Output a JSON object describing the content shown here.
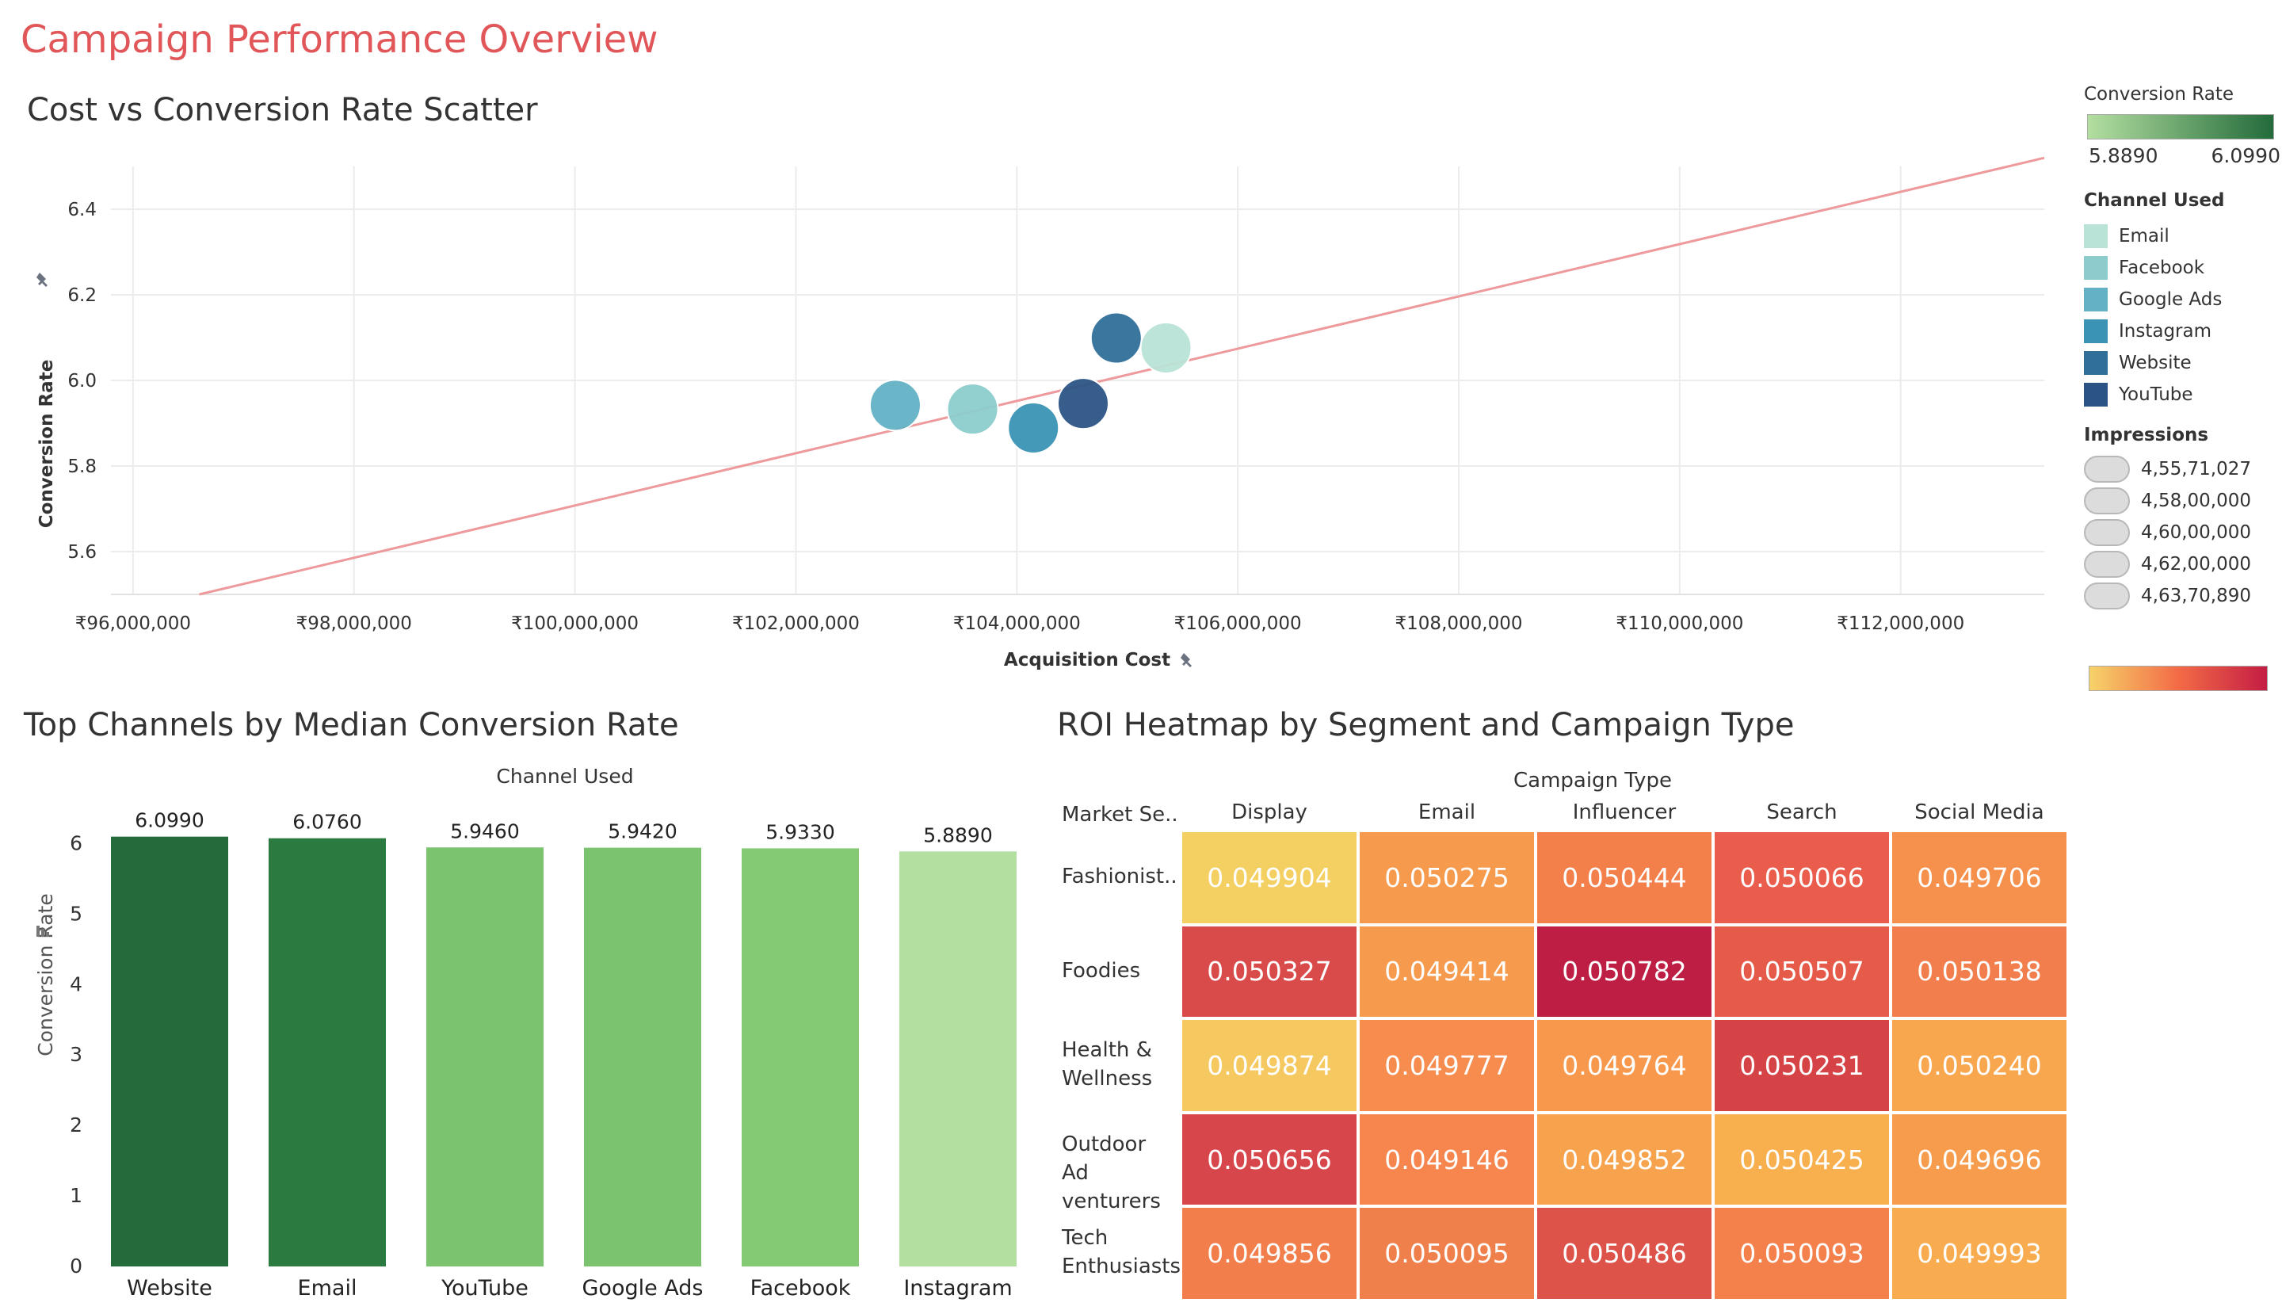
{
  "dashboard": {
    "title": "Campaign Performance Overview"
  },
  "scatter": {
    "title": "Cost vs Conversion Rate Scatter",
    "xlabel": "Acquisition Cost",
    "ylabel": "Conversion Rate",
    "x_ticks": [
      "₹96,000,000",
      "₹98,000,000",
      "₹100,000,000",
      "₹102,000,000",
      "₹104,000,000",
      "₹106,000,000",
      "₹108,000,000",
      "₹110,000,000",
      "₹112,000,000"
    ],
    "y_ticks": [
      "5.6",
      "5.8",
      "6.0",
      "6.2",
      "6.4"
    ]
  },
  "bar": {
    "title": "Top Channels by Median Conversion Rate",
    "header": "Channel Used",
    "ylabel": "Conversion Rate",
    "y_ticks": [
      "0",
      "1",
      "2",
      "3",
      "4",
      "5",
      "6"
    ]
  },
  "heatmap": {
    "title": "ROI Heatmap by Segment and Campaign Type",
    "col_header": "Campaign Type",
    "row_header": "Market Se..",
    "columns": [
      "Display",
      "Email",
      "Influencer",
      "Search",
      "Social Media"
    ],
    "rows": [
      "Fashionist..",
      "Foodies",
      "Health & Wellness",
      "Outdoor Ad venturers",
      "Tech Enthusiasts"
    ],
    "values": [
      [
        "0.049904",
        "0.050275",
        "0.050444",
        "0.050066",
        "0.049706"
      ],
      [
        "0.050327",
        "0.049414",
        "0.050782",
        "0.050507",
        "0.050138"
      ],
      [
        "0.049874",
        "0.049777",
        "0.049764",
        "0.050231",
        "0.050240"
      ],
      [
        "0.050656",
        "0.049146",
        "0.049852",
        "0.050425",
        "0.049696"
      ],
      [
        "0.049856",
        "0.050095",
        "0.050486",
        "0.050093",
        "0.049993"
      ]
    ]
  },
  "legend": {
    "conversion_rate": {
      "title": "Conversion Rate",
      "min": "5.8890",
      "max": "6.0990",
      "color_low": "#b3dfa0",
      "color_high": "#236b3b"
    },
    "channel": {
      "title": "Channel Used",
      "items": [
        {
          "label": "Email",
          "color": "#b9e3d6"
        },
        {
          "label": "Facebook",
          "color": "#8ccccc"
        },
        {
          "label": "Google Ads",
          "color": "#62b1c4"
        },
        {
          "label": "Instagram",
          "color": "#3b93b4"
        },
        {
          "label": "Website",
          "color": "#2f6f98"
        },
        {
          "label": "YouTube",
          "color": "#2b5485"
        }
      ]
    },
    "impressions": {
      "title": "Impressions",
      "items": [
        "4,55,71,027",
        "4,58,00,000",
        "4,60,00,000",
        "4,62,00,000",
        "4,63,70,890"
      ]
    },
    "roi_gradient": {
      "color_low": "#f6d36a",
      "color_mid": "#f36b46",
      "color_high": "#c41d44"
    }
  },
  "chart_data": [
    {
      "type": "scatter",
      "title": "Cost vs Conversion Rate Scatter",
      "xlabel": "Acquisition Cost",
      "ylabel": "Conversion Rate",
      "xlim": [
        95800000,
        113300000
      ],
      "ylim": [
        5.5,
        6.5
      ],
      "points": [
        {
          "channel": "Google Ads",
          "x": 102900000,
          "y": 5.942,
          "color": "#62b1c4"
        },
        {
          "channel": "Facebook",
          "x": 103600000,
          "y": 5.933,
          "color": "#8ccccc"
        },
        {
          "channel": "Instagram",
          "x": 104150000,
          "y": 5.889,
          "color": "#3b93b4"
        },
        {
          "channel": "YouTube",
          "x": 104600000,
          "y": 5.946,
          "color": "#2b5485"
        },
        {
          "channel": "Website",
          "x": 104900000,
          "y": 6.099,
          "color": "#2f6f98"
        },
        {
          "channel": "Email",
          "x": 105350000,
          "y": 6.076,
          "color": "#b9e3d6"
        }
      ],
      "trend_line": {
        "x": [
          96600000,
          113300000
        ],
        "y": [
          5.5,
          6.52
        ],
        "color": "#ee9a9c"
      },
      "grid": true
    },
    {
      "type": "bar",
      "title": "Top Channels by Median Conversion Rate",
      "xlabel": "Channel Used",
      "ylabel": "Conversion Rate",
      "categories": [
        "Website",
        "Email",
        "YouTube",
        "Google Ads",
        "Facebook",
        "Instagram"
      ],
      "values": [
        6.099,
        6.076,
        5.946,
        5.942,
        5.933,
        5.889
      ],
      "labels": [
        "6.0990",
        "6.0760",
        "5.9460",
        "5.9420",
        "5.9330",
        "5.8890"
      ],
      "colors": [
        "#236b3b",
        "#2b7b40",
        "#7cc36f",
        "#7cc36f",
        "#84c974",
        "#b3dfa0"
      ],
      "ylim": [
        0,
        6.5
      ]
    },
    {
      "type": "heatmap",
      "title": "ROI Heatmap by Segment and Campaign Type",
      "x": [
        "Display",
        "Email",
        "Influencer",
        "Search",
        "Social Media"
      ],
      "y": [
        "Fashionist..",
        "Foodies",
        "Health & Wellness",
        "Outdoor Ad venturers",
        "Tech Enthusiasts"
      ],
      "values": [
        [
          0.049904,
          0.050275,
          0.050444,
          0.050066,
          0.049706
        ],
        [
          0.050327,
          0.049414,
          0.050782,
          0.050507,
          0.050138
        ],
        [
          0.049874,
          0.049777,
          0.049764,
          0.050231,
          0.05024
        ],
        [
          0.050656,
          0.049146,
          0.049852,
          0.050425,
          0.049696
        ],
        [
          0.049856,
          0.050095,
          0.050486,
          0.050093,
          0.049993
        ]
      ],
      "colors": [
        [
          "#f4cf62",
          "#f69a4d",
          "#f37f4b",
          "#ea5c4b",
          "#f6904d"
        ],
        [
          "#d94b4a",
          "#f69a4d",
          "#be1e44",
          "#e65a4a",
          "#f17e4c"
        ],
        [
          "#f6c860",
          "#f78c4f",
          "#f7984d",
          "#d64347",
          "#f8a74e"
        ],
        [
          "#d7464a",
          "#f6864e",
          "#f7a24d",
          "#f8b04f",
          "#f79c4d"
        ],
        [
          "#f27e4b",
          "#f0804b",
          "#dd534a",
          "#f4804c",
          "#f8ac4f"
        ]
      ]
    }
  ]
}
